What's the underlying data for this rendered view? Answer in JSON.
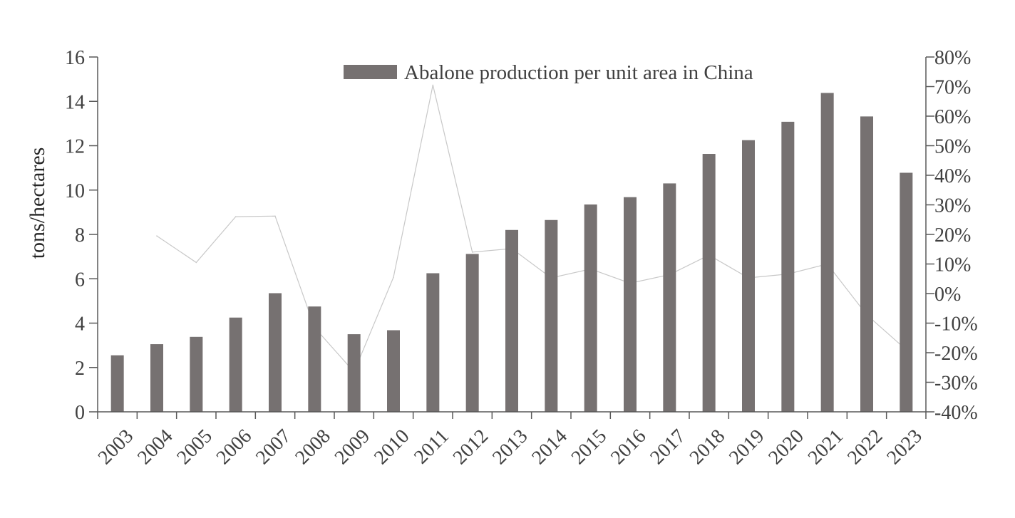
{
  "chart_data": {
    "type": "bar",
    "title": "",
    "xlabel": "",
    "ylabel": "tons/hectares",
    "y2label": "",
    "ylim": [
      0,
      16
    ],
    "y2lim": [
      -0.4,
      0.8
    ],
    "y_ticks": [
      "0",
      "2",
      "4",
      "6",
      "8",
      "10",
      "12",
      "14",
      "16"
    ],
    "y2_ticks": [
      "-40%",
      "-30%",
      "-20%",
      "-10%",
      "0%",
      "10%",
      "20%",
      "30%",
      "40%",
      "50%",
      "60%",
      "70%",
      "80%"
    ],
    "categories": [
      "2003",
      "2004",
      "2005",
      "2006",
      "2007",
      "2008",
      "2009",
      "2010",
      "2011",
      "2012",
      "2013",
      "2014",
      "2015",
      "2016",
      "2017",
      "2018",
      "2019",
      "2020",
      "2021",
      "2022",
      "2023"
    ],
    "legend_position": "top-center",
    "grid": false,
    "series": [
      {
        "name": "Abalone production per unit area in China",
        "type": "bar",
        "axis": "left",
        "color": "#767171",
        "values": [
          2.55,
          3.05,
          3.38,
          4.25,
          5.35,
          4.75,
          3.5,
          3.68,
          6.25,
          7.12,
          8.2,
          8.65,
          9.35,
          9.68,
          10.3,
          11.63,
          12.25,
          13.08,
          14.38,
          13.32,
          10.78
        ]
      },
      {
        "type": "line",
        "axis": "right",
        "color": "#c8c8c8",
        "values": [
          null,
          0.195,
          0.105,
          0.26,
          0.262,
          -0.115,
          -0.265,
          0.055,
          0.705,
          0.14,
          0.152,
          0.053,
          0.083,
          0.035,
          0.064,
          0.13,
          0.053,
          0.066,
          0.1,
          -0.072,
          -0.19
        ]
      }
    ]
  }
}
